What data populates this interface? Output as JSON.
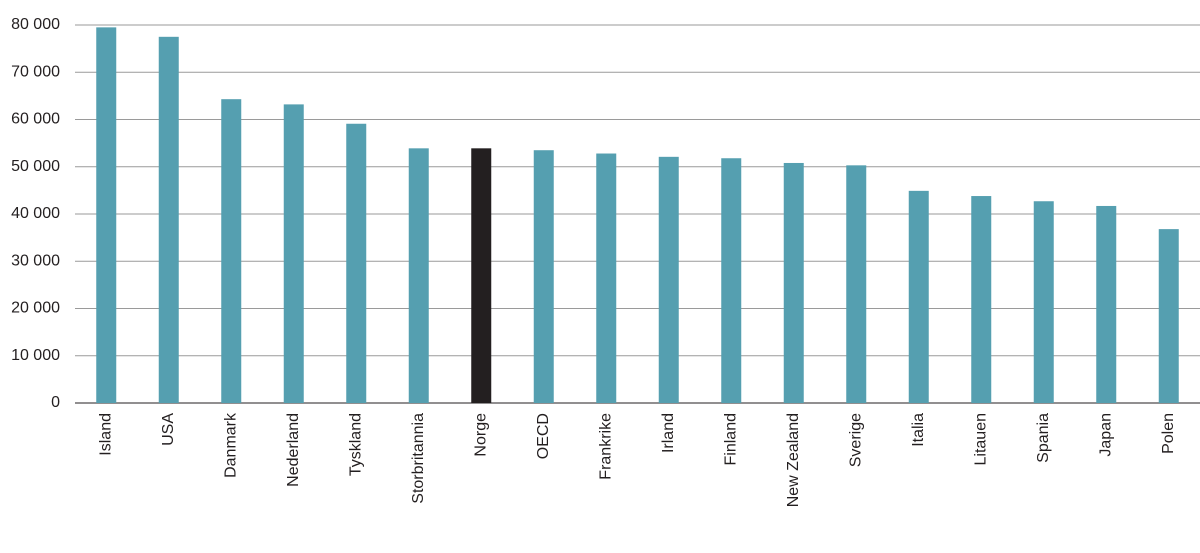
{
  "chart_data": {
    "type": "bar",
    "categories": [
      "Island",
      "USA",
      "Danmark",
      "Nederland",
      "Tyskland",
      "Storbritannia",
      "Norge",
      "OECD",
      "Frankrike",
      "Irland",
      "Finland",
      "New Zealand",
      "Sverige",
      "Italia",
      "Litauen",
      "Spania",
      "Japan",
      "Polen"
    ],
    "values": [
      79500,
      77500,
      64300,
      63200,
      59100,
      53900,
      53900,
      53500,
      52800,
      52100,
      51800,
      50800,
      50300,
      44900,
      43800,
      42700,
      41700,
      36800
    ],
    "colors": [
      "#559fb0",
      "#559fb0",
      "#559fb0",
      "#559fb0",
      "#559fb0",
      "#559fb0",
      "#231f20",
      "#559fb0",
      "#559fb0",
      "#559fb0",
      "#559fb0",
      "#559fb0",
      "#559fb0",
      "#559fb0",
      "#559fb0",
      "#559fb0",
      "#559fb0",
      "#559fb0"
    ],
    "ylim": [
      0,
      80000
    ],
    "yticks": [
      0,
      {
        "value": 10000,
        "label": "10 000"
      },
      {
        "value": 20000,
        "label": "20 000"
      },
      {
        "value": 30000,
        "label": "30 000"
      },
      {
        "value": 40000,
        "label": "40 000"
      },
      {
        "value": 50000,
        "label": "50 000"
      },
      {
        "value": 60000,
        "label": "60 000"
      },
      {
        "value": 70000,
        "label": "70 000"
      },
      {
        "value": 80000,
        "label": "80 000"
      }
    ],
    "grid": true
  }
}
